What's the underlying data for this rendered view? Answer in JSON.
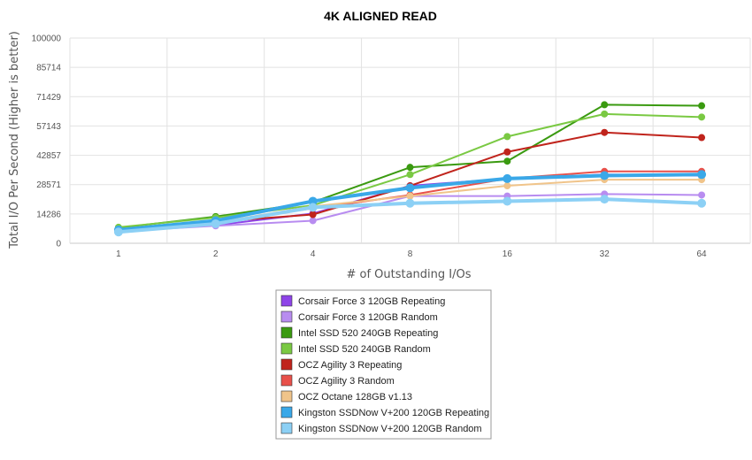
{
  "chart_data": {
    "type": "line",
    "title": "4K ALIGNED READ",
    "xlabel": "# of Outstanding I/Os",
    "ylabel": "Total I/O Per Second (Higher is better)",
    "categories": [
      "1",
      "2",
      "4",
      "8",
      "16",
      "32",
      "64"
    ],
    "y_ticks": [
      "0",
      "14286",
      "28571",
      "42857",
      "57143",
      "71429",
      "85714",
      "100000"
    ],
    "ylim": [
      0,
      100000
    ],
    "grid": true,
    "legend_position": "bottom",
    "series": [
      {
        "name": "Corsair Force 3 120GB Repeating",
        "color": "#8e44e8",
        "values": [
          6000,
          8800,
          14500,
          28000,
          31500,
          33500,
          33000
        ]
      },
      {
        "name": "Corsair Force 3 120GB Random",
        "color": "#b88cf0",
        "values": [
          5800,
          8500,
          11000,
          23000,
          23000,
          24000,
          23500
        ]
      },
      {
        "name": "Intel SSD 520 240GB Repeating",
        "color": "#3a9a10",
        "values": [
          7500,
          13000,
          20000,
          37000,
          40000,
          67500,
          67000
        ]
      },
      {
        "name": "Intel SSD 520 240GB Random",
        "color": "#7ac943",
        "values": [
          7800,
          12500,
          18500,
          33500,
          52000,
          63000,
          61500
        ]
      },
      {
        "name": "OCZ Agility 3 Repeating",
        "color": "#c0241c",
        "values": [
          6800,
          10500,
          14000,
          28000,
          44500,
          54000,
          51500
        ]
      },
      {
        "name": "OCZ Agility 3 Random",
        "color": "#e8504a",
        "values": [
          6700,
          10200,
          17000,
          23500,
          31500,
          35000,
          35000
        ]
      },
      {
        "name": "OCZ Octane 128GB v1.13",
        "color": "#f0c48a",
        "values": [
          6200,
          10000,
          18000,
          23000,
          28000,
          31000,
          31000
        ]
      },
      {
        "name": "Kingston SSDNow V+200 120GB Repeating",
        "color": "#3aa8e8",
        "values": [
          6500,
          11000,
          20500,
          27000,
          31500,
          33000,
          33500
        ]
      },
      {
        "name": "Kingston SSDNow V+200 120GB Random",
        "color": "#8cd0f5",
        "values": [
          5500,
          9500,
          17500,
          19500,
          20500,
          21500,
          19500
        ]
      }
    ]
  }
}
